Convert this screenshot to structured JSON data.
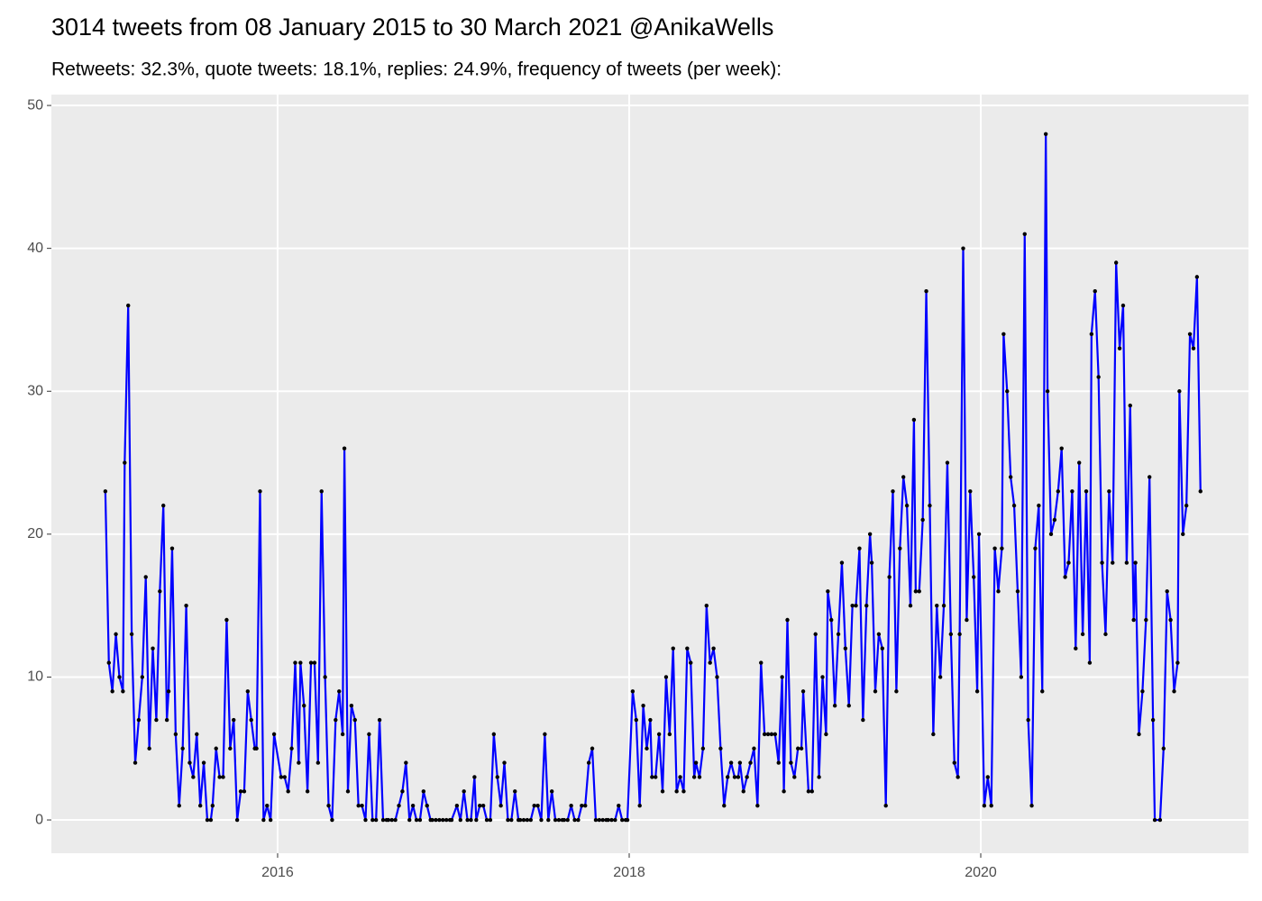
{
  "chart_data": {
    "type": "line",
    "title": "3014 tweets from 08 January 2015 to 30 March 2021 @AnikaWells",
    "subtitle": "Retweets: 32.3%, quote tweets: 18.1%, replies: 24.9%, frequency of tweets (per week):",
    "x": [
      2015.02,
      2015.04,
      2015.06,
      2015.08,
      2015.1,
      2015.12,
      2015.13,
      2015.15,
      2015.17,
      2015.19,
      2015.21,
      2015.23,
      2015.25,
      2015.27,
      2015.29,
      2015.31,
      2015.33,
      2015.35,
      2015.37,
      2015.38,
      2015.4,
      2015.42,
      2015.44,
      2015.46,
      2015.48,
      2015.5,
      2015.52,
      2015.54,
      2015.56,
      2015.58,
      2015.6,
      2015.62,
      2015.63,
      2015.65,
      2015.67,
      2015.69,
      2015.71,
      2015.73,
      2015.75,
      2015.77,
      2015.79,
      2015.81,
      2015.83,
      2015.85,
      2015.87,
      2015.88,
      2015.9,
      2015.92,
      2015.94,
      2015.96,
      2015.98,
      2016.02,
      2016.04,
      2016.06,
      2016.08,
      2016.1,
      2016.12,
      2016.13,
      2016.15,
      2016.17,
      2016.19,
      2016.21,
      2016.23,
      2016.25,
      2016.27,
      2016.29,
      2016.31,
      2016.33,
      2016.35,
      2016.37,
      2016.38,
      2016.4,
      2016.42,
      2016.44,
      2016.46,
      2016.48,
      2016.5,
      2016.52,
      2016.54,
      2016.56,
      2016.58,
      2016.6,
      2016.62,
      2016.63,
      2016.65,
      2016.67,
      2016.69,
      2016.71,
      2016.73,
      2016.75,
      2016.77,
      2016.79,
      2016.81,
      2016.83,
      2016.85,
      2016.87,
      2016.88,
      2016.9,
      2016.92,
      2016.94,
      2016.96,
      2016.98,
      2016.99,
      2017.02,
      2017.04,
      2017.06,
      2017.08,
      2017.1,
      2017.12,
      2017.13,
      2017.15,
      2017.17,
      2017.19,
      2017.21,
      2017.23,
      2017.25,
      2017.27,
      2017.29,
      2017.31,
      2017.33,
      2017.35,
      2017.37,
      2017.38,
      2017.4,
      2017.42,
      2017.44,
      2017.46,
      2017.48,
      2017.5,
      2017.52,
      2017.54,
      2017.56,
      2017.58,
      2017.6,
      2017.62,
      2017.63,
      2017.65,
      2017.67,
      2017.69,
      2017.71,
      2017.73,
      2017.75,
      2017.77,
      2017.79,
      2017.81,
      2017.83,
      2017.85,
      2017.87,
      2017.88,
      2017.9,
      2017.92,
      2017.94,
      2017.96,
      2017.98,
      2017.99,
      2018.02,
      2018.04,
      2018.06,
      2018.08,
      2018.1,
      2018.12,
      2018.13,
      2018.15,
      2018.17,
      2018.19,
      2018.21,
      2018.23,
      2018.25,
      2018.27,
      2018.29,
      2018.31,
      2018.33,
      2018.35,
      2018.37,
      2018.38,
      2018.4,
      2018.42,
      2018.44,
      2018.46,
      2018.48,
      2018.5,
      2018.52,
      2018.54,
      2018.56,
      2018.58,
      2018.6,
      2018.62,
      2018.63,
      2018.65,
      2018.67,
      2018.69,
      2018.71,
      2018.73,
      2018.75,
      2018.77,
      2018.79,
      2018.81,
      2018.83,
      2018.85,
      2018.87,
      2018.88,
      2018.9,
      2018.92,
      2018.94,
      2018.96,
      2018.98,
      2018.99,
      2019.02,
      2019.04,
      2019.06,
      2019.08,
      2019.1,
      2019.12,
      2019.13,
      2019.15,
      2019.17,
      2019.19,
      2019.21,
      2019.23,
      2019.25,
      2019.27,
      2019.29,
      2019.31,
      2019.33,
      2019.35,
      2019.37,
      2019.38,
      2019.4,
      2019.42,
      2019.44,
      2019.46,
      2019.48,
      2019.5,
      2019.52,
      2019.54,
      2019.56,
      2019.58,
      2019.6,
      2019.62,
      2019.63,
      2019.65,
      2019.67,
      2019.69,
      2019.71,
      2019.73,
      2019.75,
      2019.77,
      2019.79,
      2019.81,
      2019.83,
      2019.85,
      2019.87,
      2019.88,
      2019.9,
      2019.92,
      2019.94,
      2019.96,
      2019.98,
      2019.99,
      2020.02,
      2020.04,
      2020.06,
      2020.08,
      2020.1,
      2020.12,
      2020.13,
      2020.15,
      2020.17,
      2020.19,
      2020.21,
      2020.23,
      2020.25,
      2020.27,
      2020.29,
      2020.31,
      2020.33,
      2020.35,
      2020.37,
      2020.38,
      2020.4,
      2020.42,
      2020.44,
      2020.46,
      2020.48,
      2020.5,
      2020.52,
      2020.54,
      2020.56,
      2020.58,
      2020.6,
      2020.62,
      2020.63,
      2020.65,
      2020.67,
      2020.69,
      2020.71,
      2020.73,
      2020.75,
      2020.77,
      2020.79,
      2020.81,
      2020.83,
      2020.85,
      2020.87,
      2020.88,
      2020.9,
      2020.92,
      2020.94,
      2020.96,
      2020.98,
      2020.99,
      2021.02,
      2021.04,
      2021.06,
      2021.08,
      2021.1,
      2021.12,
      2021.13,
      2021.15,
      2021.17,
      2021.19,
      2021.21,
      2021.23,
      2021.25
    ],
    "series": [
      {
        "color": "#0000ff",
        "point_color": "#000000",
        "values": [
          23,
          11,
          9,
          13,
          10,
          9,
          25,
          36,
          13,
          4,
          7,
          10,
          17,
          5,
          12,
          7,
          16,
          22,
          7,
          9,
          19,
          6,
          1,
          5,
          15,
          4,
          3,
          6,
          1,
          4,
          0,
          0,
          1,
          5,
          3,
          3,
          14,
          5,
          7,
          0,
          2,
          2,
          9,
          7,
          5,
          5,
          23,
          0,
          1,
          0,
          6,
          3,
          3,
          2,
          5,
          11,
          4,
          11,
          8,
          2,
          11,
          11,
          4,
          23,
          10,
          1,
          0,
          7,
          9,
          6,
          26,
          2,
          8,
          7,
          1,
          1,
          0,
          6,
          0,
          0,
          7,
          0,
          0,
          0,
          0,
          0,
          1,
          2,
          4,
          0,
          1,
          0,
          0,
          2,
          1,
          0,
          0,
          0,
          0,
          0,
          0,
          0,
          0,
          1,
          0,
          2,
          0,
          0,
          3,
          0,
          1,
          1,
          0,
          0,
          6,
          3,
          1,
          4,
          0,
          0,
          2,
          0,
          0,
          0,
          0,
          0,
          1,
          1,
          0,
          6,
          0,
          2,
          0,
          0,
          0,
          0,
          0,
          1,
          0,
          0,
          1,
          1,
          4,
          5,
          0,
          0,
          0,
          0,
          0,
          0,
          0,
          1,
          0,
          0,
          0,
          9,
          7,
          1,
          8,
          5,
          7,
          3,
          3,
          6,
          2,
          10,
          6,
          12,
          2,
          3,
          2,
          12,
          11,
          3,
          4,
          3,
          5,
          15,
          11,
          12,
          10,
          5,
          1,
          3,
          4,
          3,
          3,
          4,
          2,
          3,
          4,
          5,
          1,
          11,
          6,
          6,
          6,
          6,
          4,
          10,
          2,
          14,
          4,
          3,
          5,
          5,
          9,
          2,
          2,
          13,
          3,
          10,
          6,
          16,
          14,
          8,
          13,
          18,
          12,
          8,
          15,
          15,
          19,
          7,
          15,
          20,
          18,
          9,
          13,
          12,
          1,
          17,
          23,
          9,
          19,
          24,
          22,
          15,
          28,
          16,
          16,
          21,
          37,
          22,
          6,
          15,
          10,
          15,
          25,
          13,
          4,
          3,
          13,
          40,
          14,
          23,
          17,
          9,
          20,
          1,
          3,
          1,
          19,
          16,
          19,
          34,
          30,
          24,
          22,
          16,
          10,
          41,
          7,
          1,
          19,
          22,
          9,
          48,
          30,
          20,
          21,
          23,
          26,
          17,
          18,
          23,
          12,
          25,
          13,
          23,
          11,
          34,
          37,
          31,
          18,
          13,
          23,
          18,
          39,
          33,
          36,
          18,
          29,
          14,
          18,
          6,
          9,
          14,
          24,
          7,
          0,
          0,
          5,
          16,
          14,
          9,
          11,
          30,
          20,
          22,
          34,
          33,
          38,
          23
        ]
      }
    ],
    "xlim": [
      2014.713,
      2021.523
    ],
    "xticks": [
      2016,
      2018,
      2020
    ],
    "ylim": [
      -2.33,
      50.76
    ],
    "yticks": [
      0,
      10,
      20,
      30,
      40,
      50
    ],
    "grid": true,
    "panel_color": "#ebebeb"
  }
}
